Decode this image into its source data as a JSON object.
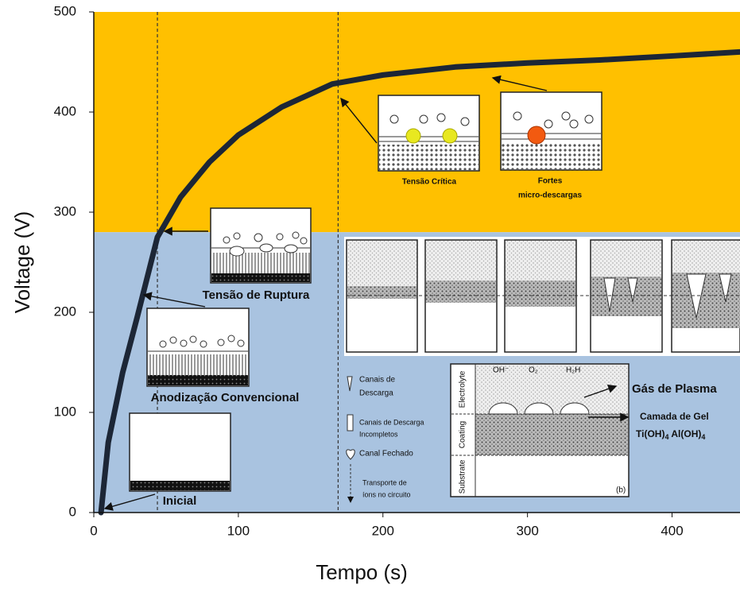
{
  "chart_data": {
    "type": "line",
    "x_label": "Tempo (s)",
    "y_label": "Voltage (V)",
    "x": [
      5,
      10,
      20,
      30,
      44,
      60,
      80,
      100,
      130,
      165,
      200,
      250,
      300,
      350,
      400,
      447
    ],
    "values": [
      0,
      70,
      140,
      195,
      275,
      315,
      350,
      377,
      405,
      428,
      437,
      445,
      449,
      452,
      456,
      460
    ],
    "color": "#1c2636",
    "xlim": [
      0,
      447
    ],
    "ylim": [
      0,
      500
    ],
    "xticks": [
      0,
      100,
      200,
      300,
      400
    ],
    "yticks": [
      0,
      100,
      200,
      300,
      400,
      500
    ],
    "regions": [
      {
        "ylim": [
          280,
          500
        ],
        "color": "#ffc000"
      },
      {
        "ylim": [
          0,
          280
        ],
        "color": "#a9c3e0"
      }
    ],
    "vlines": [
      44,
      169
    ]
  },
  "annotations": {
    "inicial": "Inicial",
    "anodizacao": "Anodização Convencional",
    "ruptura": "Tensão de Ruptura",
    "critica": "Tensão Crítica",
    "fortes": [
      "Fortes",
      "micro-descargas"
    ],
    "gas": "Gás de Plasma",
    "gel": "Camada de Gel",
    "gel_formula": [
      "Ti(OH)",
      "4",
      " Al(OH)",
      "4"
    ]
  },
  "legend": {
    "canais": [
      "Canais de",
      "Descarga"
    ],
    "incompletos": [
      "Canais de Descarga",
      "Incompletos"
    ],
    "fechado": "Canal Fechado",
    "transporte": [
      "Transporte de",
      "íons no circuito"
    ]
  },
  "inset": {
    "oh": "OH⁻",
    "o2": "O₂",
    "h2": "H₂H",
    "electrolyte": "Electrolyte",
    "coating": "Coating",
    "substrate": "Substrate",
    "panel": "(b)"
  }
}
